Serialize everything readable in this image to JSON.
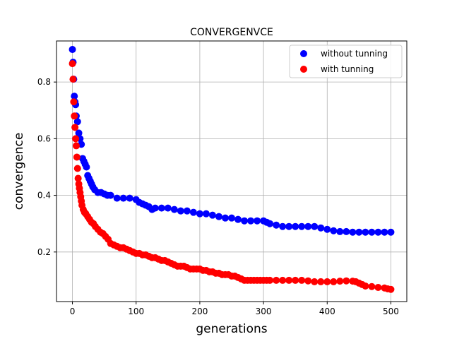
{
  "chart_data": {
    "type": "scatter",
    "title": "CONVERGENVCE",
    "xlabel": "generations",
    "ylabel": "convergence",
    "xlim": [
      -25,
      525
    ],
    "ylim": [
      0.025,
      0.945
    ],
    "xticks": [
      0,
      100,
      200,
      300,
      400,
      500
    ],
    "yticks": [
      0.2,
      0.4,
      0.6,
      0.8
    ],
    "xtick_labels": [
      "0",
      "100",
      "200",
      "300",
      "400",
      "500"
    ],
    "ytick_labels": [
      "0.2",
      "0.4",
      "0.6",
      "0.8"
    ],
    "grid": true,
    "legend_position": "top-right",
    "series": [
      {
        "name": "without tunning",
        "color": "#0000ff",
        "points": [
          [
            0,
            0.915
          ],
          [
            1,
            0.87
          ],
          [
            2,
            0.81
          ],
          [
            3,
            0.75
          ],
          [
            4,
            0.73
          ],
          [
            5,
            0.72
          ],
          [
            6,
            0.68
          ],
          [
            8,
            0.66
          ],
          [
            10,
            0.62
          ],
          [
            12,
            0.6
          ],
          [
            14,
            0.58
          ],
          [
            16,
            0.53
          ],
          [
            18,
            0.52
          ],
          [
            20,
            0.51
          ],
          [
            22,
            0.5
          ],
          [
            24,
            0.47
          ],
          [
            26,
            0.46
          ],
          [
            28,
            0.45
          ],
          [
            30,
            0.44
          ],
          [
            32,
            0.43
          ],
          [
            35,
            0.42
          ],
          [
            40,
            0.41
          ],
          [
            45,
            0.41
          ],
          [
            50,
            0.405
          ],
          [
            55,
            0.4
          ],
          [
            60,
            0.4
          ],
          [
            70,
            0.39
          ],
          [
            80,
            0.39
          ],
          [
            90,
            0.39
          ],
          [
            100,
            0.385
          ],
          [
            105,
            0.375
          ],
          [
            110,
            0.37
          ],
          [
            115,
            0.365
          ],
          [
            120,
            0.36
          ],
          [
            125,
            0.35
          ],
          [
            130,
            0.355
          ],
          [
            140,
            0.355
          ],
          [
            150,
            0.355
          ],
          [
            160,
            0.35
          ],
          [
            170,
            0.345
          ],
          [
            180,
            0.345
          ],
          [
            190,
            0.34
          ],
          [
            200,
            0.335
          ],
          [
            210,
            0.335
          ],
          [
            220,
            0.33
          ],
          [
            230,
            0.325
          ],
          [
            240,
            0.32
          ],
          [
            250,
            0.32
          ],
          [
            260,
            0.315
          ],
          [
            270,
            0.31
          ],
          [
            280,
            0.31
          ],
          [
            290,
            0.31
          ],
          [
            300,
            0.31
          ],
          [
            305,
            0.305
          ],
          [
            310,
            0.3
          ],
          [
            320,
            0.295
          ],
          [
            330,
            0.29
          ],
          [
            340,
            0.29
          ],
          [
            350,
            0.29
          ],
          [
            360,
            0.29
          ],
          [
            370,
            0.29
          ],
          [
            380,
            0.29
          ],
          [
            390,
            0.285
          ],
          [
            400,
            0.28
          ],
          [
            410,
            0.275
          ],
          [
            420,
            0.272
          ],
          [
            430,
            0.272
          ],
          [
            440,
            0.27
          ],
          [
            450,
            0.27
          ],
          [
            460,
            0.27
          ],
          [
            470,
            0.27
          ],
          [
            480,
            0.27
          ],
          [
            490,
            0.27
          ],
          [
            500,
            0.27
          ]
        ]
      },
      {
        "name": "with tunning",
        "color": "#ff0000",
        "points": [
          [
            0,
            0.865
          ],
          [
            1,
            0.81
          ],
          [
            2,
            0.73
          ],
          [
            3,
            0.68
          ],
          [
            4,
            0.64
          ],
          [
            5,
            0.6
          ],
          [
            6,
            0.575
          ],
          [
            7,
            0.535
          ],
          [
            8,
            0.495
          ],
          [
            9,
            0.46
          ],
          [
            10,
            0.44
          ],
          [
            11,
            0.425
          ],
          [
            12,
            0.41
          ],
          [
            13,
            0.395
          ],
          [
            14,
            0.38
          ],
          [
            15,
            0.365
          ],
          [
            17,
            0.35
          ],
          [
            19,
            0.34
          ],
          [
            21,
            0.335
          ],
          [
            24,
            0.325
          ],
          [
            27,
            0.315
          ],
          [
            30,
            0.305
          ],
          [
            33,
            0.3
          ],
          [
            36,
            0.29
          ],
          [
            40,
            0.28
          ],
          [
            44,
            0.27
          ],
          [
            48,
            0.265
          ],
          [
            52,
            0.255
          ],
          [
            56,
            0.245
          ],
          [
            60,
            0.23
          ],
          [
            65,
            0.225
          ],
          [
            70,
            0.22
          ],
          [
            75,
            0.215
          ],
          [
            80,
            0.215
          ],
          [
            85,
            0.21
          ],
          [
            90,
            0.205
          ],
          [
            95,
            0.2
          ],
          [
            100,
            0.195
          ],
          [
            105,
            0.195
          ],
          [
            110,
            0.19
          ],
          [
            115,
            0.19
          ],
          [
            120,
            0.185
          ],
          [
            125,
            0.18
          ],
          [
            130,
            0.18
          ],
          [
            135,
            0.175
          ],
          [
            140,
            0.17
          ],
          [
            145,
            0.17
          ],
          [
            150,
            0.165
          ],
          [
            155,
            0.16
          ],
          [
            160,
            0.155
          ],
          [
            165,
            0.15
          ],
          [
            170,
            0.15
          ],
          [
            175,
            0.15
          ],
          [
            180,
            0.145
          ],
          [
            185,
            0.14
          ],
          [
            190,
            0.14
          ],
          [
            195,
            0.14
          ],
          [
            200,
            0.14
          ],
          [
            205,
            0.135
          ],
          [
            210,
            0.135
          ],
          [
            215,
            0.13
          ],
          [
            220,
            0.13
          ],
          [
            225,
            0.125
          ],
          [
            230,
            0.125
          ],
          [
            235,
            0.12
          ],
          [
            240,
            0.12
          ],
          [
            245,
            0.12
          ],
          [
            250,
            0.115
          ],
          [
            255,
            0.115
          ],
          [
            260,
            0.11
          ],
          [
            265,
            0.105
          ],
          [
            270,
            0.1
          ],
          [
            275,
            0.1
          ],
          [
            280,
            0.1
          ],
          [
            285,
            0.1
          ],
          [
            290,
            0.1
          ],
          [
            295,
            0.1
          ],
          [
            300,
            0.1
          ],
          [
            305,
            0.1
          ],
          [
            310,
            0.1
          ],
          [
            320,
            0.1
          ],
          [
            330,
            0.1
          ],
          [
            340,
            0.1
          ],
          [
            350,
            0.1
          ],
          [
            360,
            0.1
          ],
          [
            370,
            0.098
          ],
          [
            380,
            0.095
          ],
          [
            390,
            0.095
          ],
          [
            400,
            0.095
          ],
          [
            410,
            0.095
          ],
          [
            420,
            0.097
          ],
          [
            430,
            0.098
          ],
          [
            440,
            0.097
          ],
          [
            445,
            0.095
          ],
          [
            450,
            0.09
          ],
          [
            455,
            0.085
          ],
          [
            460,
            0.08
          ],
          [
            470,
            0.078
          ],
          [
            480,
            0.075
          ],
          [
            490,
            0.073
          ],
          [
            495,
            0.07
          ],
          [
            500,
            0.068
          ]
        ]
      }
    ]
  }
}
